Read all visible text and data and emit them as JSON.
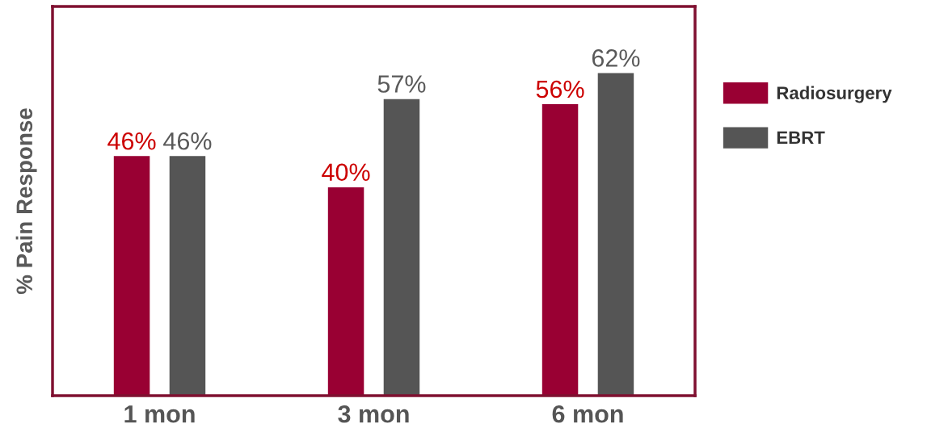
{
  "chart_data": {
    "type": "bar",
    "ylabel": "% Pain Response",
    "categories": [
      "1 mon",
      "3 mon",
      "6 mon"
    ],
    "series": [
      {
        "name": "Radiosurgery",
        "color": "#990033",
        "values": [
          46,
          40,
          56
        ],
        "value_labels": [
          "46%",
          "40%",
          "56%"
        ]
      },
      {
        "name": "EBRT",
        "color": "#555555",
        "values": [
          46,
          57,
          62
        ],
        "value_labels": [
          "46%",
          "57%",
          "62%"
        ]
      }
    ],
    "ylim": [
      0,
      75
    ],
    "tick_labels": "x",
    "legend": "right",
    "grid": false
  }
}
